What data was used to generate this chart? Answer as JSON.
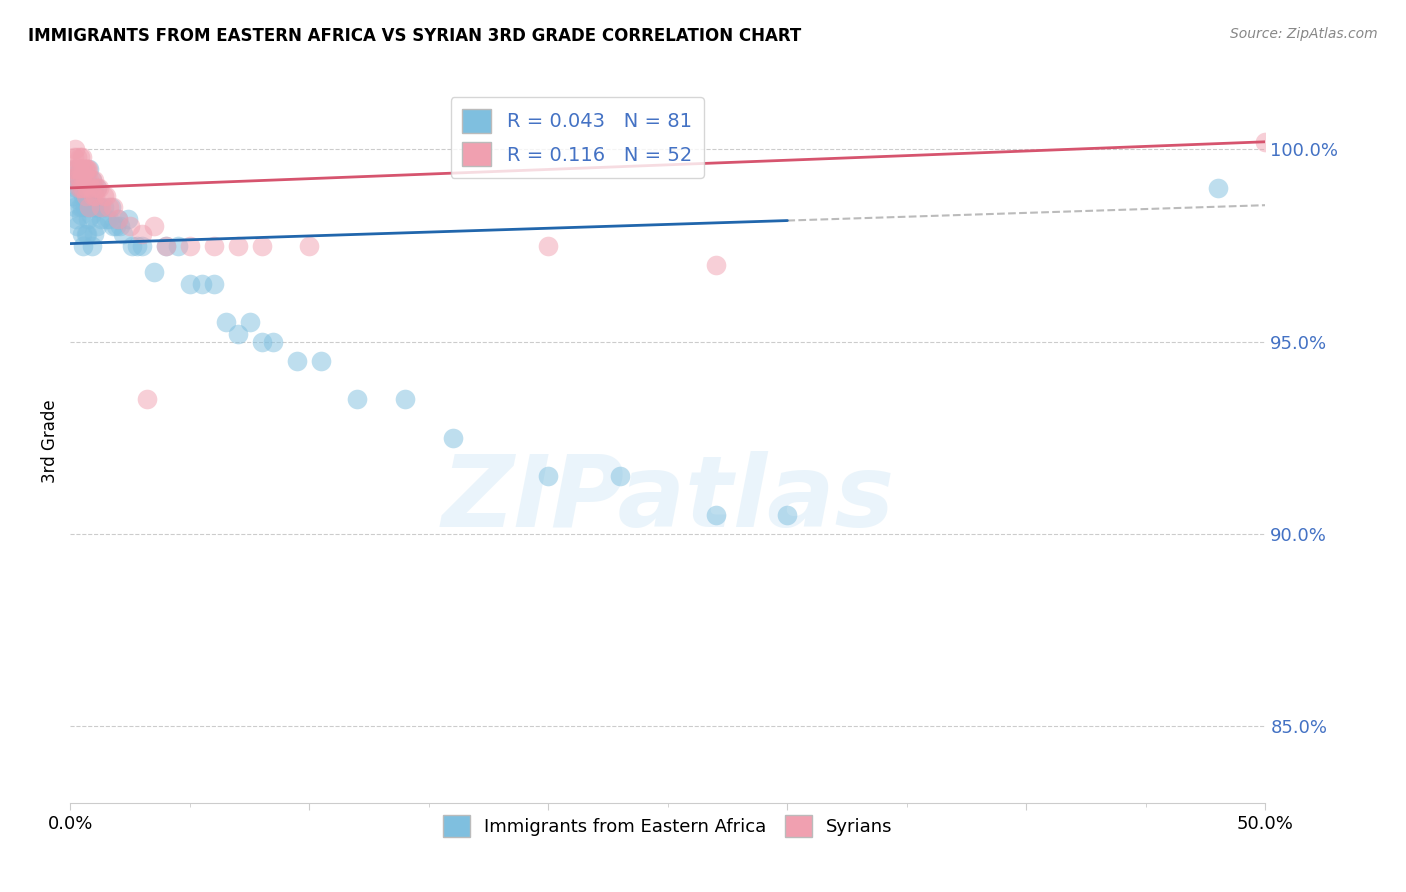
{
  "title": "IMMIGRANTS FROM EASTERN AFRICA VS SYRIAN 3RD GRADE CORRELATION CHART",
  "source": "Source: ZipAtlas.com",
  "ylabel": "3rd Grade",
  "yticks": [
    85.0,
    90.0,
    95.0,
    100.0
  ],
  "ytick_labels": [
    "85.0%",
    "90.0%",
    "95.0%",
    "100.0%"
  ],
  "xmin": 0.0,
  "xmax": 50.0,
  "ymin": 83.0,
  "ymax": 101.8,
  "blue_R": 0.043,
  "blue_N": 81,
  "pink_R": 0.116,
  "pink_N": 52,
  "blue_color": "#7fbfdf",
  "pink_color": "#f0a0b0",
  "blue_line_color": "#2166ac",
  "pink_line_color": "#d6546e",
  "legend_label_blue": "Immigrants from Eastern Africa",
  "legend_label_pink": "Syrians",
  "blue_trend_x0": 0.0,
  "blue_trend_y0": 97.55,
  "blue_trend_x1": 50.0,
  "blue_trend_y1": 98.55,
  "blue_trend_solid_end": 30.0,
  "pink_trend_x0": 0.0,
  "pink_trend_y0": 99.0,
  "pink_trend_x1": 50.0,
  "pink_trend_y1": 100.2,
  "pink_trend_solid_end": 50.0,
  "blue_points_x": [
    0.1,
    0.15,
    0.2,
    0.2,
    0.25,
    0.25,
    0.3,
    0.3,
    0.3,
    0.35,
    0.4,
    0.4,
    0.45,
    0.45,
    0.5,
    0.5,
    0.5,
    0.55,
    0.55,
    0.6,
    0.6,
    0.65,
    0.65,
    0.7,
    0.7,
    0.7,
    0.75,
    0.75,
    0.8,
    0.8,
    0.85,
    0.85,
    0.9,
    0.9,
    0.9,
    0.95,
    0.95,
    1.0,
    1.0,
    1.0,
    1.05,
    1.1,
    1.1,
    1.15,
    1.2,
    1.25,
    1.3,
    1.4,
    1.5,
    1.6,
    1.7,
    1.8,
    1.9,
    2.0,
    2.1,
    2.2,
    2.4,
    2.6,
    2.8,
    3.0,
    3.5,
    4.0,
    4.5,
    5.0,
    5.5,
    6.0,
    6.5,
    7.0,
    7.5,
    8.0,
    8.5,
    9.5,
    10.5,
    12.0,
    14.0,
    16.0,
    20.0,
    23.0,
    27.0,
    30.0,
    48.0
  ],
  "blue_points_y": [
    98.8,
    99.2,
    99.5,
    98.5,
    99.0,
    98.2,
    99.3,
    98.7,
    98.0,
    99.0,
    99.5,
    98.5,
    99.2,
    98.3,
    99.0,
    98.5,
    97.8,
    98.8,
    97.5,
    99.0,
    98.5,
    98.8,
    97.8,
    99.2,
    98.8,
    97.8,
    99.0,
    98.2,
    99.5,
    98.5,
    99.0,
    98.3,
    99.2,
    98.5,
    97.5,
    99.0,
    98.5,
    99.0,
    98.5,
    97.8,
    98.5,
    99.0,
    98.0,
    98.5,
    98.5,
    98.5,
    98.2,
    98.5,
    98.2,
    98.2,
    98.5,
    98.0,
    98.0,
    98.2,
    98.0,
    97.8,
    98.2,
    97.5,
    97.5,
    97.5,
    96.8,
    97.5,
    97.5,
    96.5,
    96.5,
    96.5,
    95.5,
    95.2,
    95.5,
    95.0,
    95.0,
    94.5,
    94.5,
    93.5,
    93.5,
    92.5,
    91.5,
    91.5,
    90.5,
    90.5,
    99.0
  ],
  "pink_points_x": [
    0.1,
    0.15,
    0.2,
    0.25,
    0.25,
    0.3,
    0.3,
    0.35,
    0.35,
    0.4,
    0.4,
    0.45,
    0.45,
    0.5,
    0.5,
    0.55,
    0.55,
    0.6,
    0.6,
    0.65,
    0.65,
    0.7,
    0.7,
    0.75,
    0.8,
    0.8,
    0.85,
    0.9,
    0.95,
    1.0,
    1.05,
    1.1,
    1.2,
    1.3,
    1.4,
    1.5,
    1.6,
    1.8,
    2.0,
    2.5,
    3.0,
    3.5,
    4.0,
    5.0,
    6.0,
    7.0,
    8.0,
    10.0,
    20.0,
    27.0,
    50.0,
    3.2
  ],
  "pink_points_y": [
    99.5,
    99.8,
    100.0,
    99.5,
    99.2,
    99.8,
    99.3,
    99.5,
    99.0,
    99.8,
    99.2,
    99.5,
    99.0,
    99.8,
    99.3,
    99.5,
    99.0,
    99.5,
    99.2,
    99.5,
    98.8,
    99.5,
    99.0,
    99.5,
    99.2,
    98.5,
    99.0,
    99.2,
    98.8,
    99.2,
    98.8,
    99.0,
    99.0,
    98.5,
    98.8,
    98.8,
    98.5,
    98.5,
    98.2,
    98.0,
    97.8,
    98.0,
    97.5,
    97.5,
    97.5,
    97.5,
    97.5,
    97.5,
    97.5,
    97.0,
    100.2,
    93.5
  ],
  "watermark": "ZIPatlas",
  "background_color": "#ffffff"
}
